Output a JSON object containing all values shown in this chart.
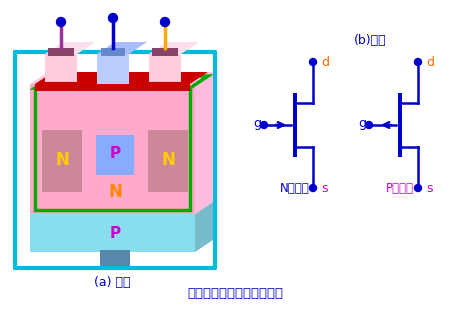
{
  "title": "结型场效应管的结构和符号",
  "label_a": "(a) 结构",
  "label_b": "(b)符号",
  "label_n": "N沟道管",
  "label_p": "P沟道管",
  "bg_color": "#ffffff",
  "blue": "#0000cc",
  "cyan": "#00bbdd",
  "pink_main": "#ffaacc",
  "pink_top": "#ffccdd",
  "pink_side": "#ffbbdd",
  "green": "#00aa00",
  "red": "#cc0000",
  "teal": "#88ddee",
  "purple_lead": "#993399",
  "orange_lead": "#ffaa00",
  "n_label_color": "#ffcc00",
  "p_label_color": "#cc00cc",
  "n_body_color": "#cc8899",
  "gate_color": "#88aaff",
  "dark_square": "#884466",
  "orange_label": "#ff6600",
  "bottom_contact": "#5588aa"
}
